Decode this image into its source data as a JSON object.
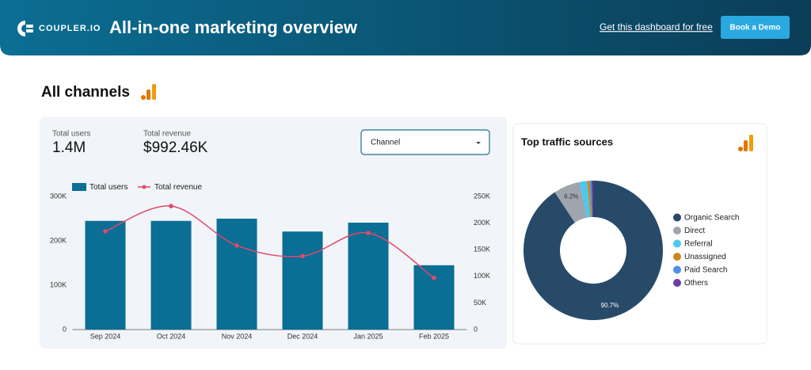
{
  "header": {
    "logo": "COUPLER.IO",
    "title": "All-in-one marketing overview",
    "link": "Get this dashboard for free",
    "button": "Book a Demo"
  },
  "section": {
    "title": "All channels"
  },
  "kpis": [
    {
      "label": "Total users",
      "value": "1.4M"
    },
    {
      "label": "Total revenue",
      "value": "$992.46K"
    }
  ],
  "filter": {
    "label": "Channel"
  },
  "chart_data": [
    {
      "type": "bar_line",
      "categories": [
        "Sep 2024",
        "Oct 2024",
        "Nov 2024",
        "Dec 2024",
        "Jan 2025",
        "Feb 2025"
      ],
      "series": [
        {
          "name": "Total users",
          "type": "bar",
          "color": "#0a6e95",
          "values": [
            245000,
            245000,
            250000,
            221000,
            241000,
            145000
          ]
        },
        {
          "name": "Total revenue",
          "type": "line",
          "axis": "y2",
          "color": "#e04a6b",
          "values": [
            184500,
            232000,
            158000,
            138000,
            181500,
            97000
          ]
        }
      ],
      "ylim": [
        0,
        300000
      ],
      "yticks": [
        0,
        {
          "value": 100000,
          "label": "100K"
        },
        {
          "value": 200000,
          "label": "200K"
        },
        {
          "value": 300000,
          "label": "300K"
        }
      ],
      "y2lim": [
        0,
        250000
      ],
      "y2ticks": [
        0,
        {
          "value": 50000,
          "label": "50K"
        },
        {
          "value": 100000,
          "label": "100K"
        },
        {
          "value": 150000,
          "label": "150K"
        },
        {
          "value": 200000,
          "label": "200K"
        },
        {
          "value": 250000,
          "label": "250K"
        }
      ],
      "legend": "top-left"
    },
    {
      "type": "donut",
      "title": "Top traffic sources",
      "categories": [
        "Organic Search",
        "Direct",
        "Referral",
        "Unassigned",
        "Paid Search",
        "Others"
      ],
      "values": [
        90.7,
        6.2,
        1.7,
        0.6,
        0.4,
        0.4
      ],
      "value_labels": [
        "90.7%",
        "6.2%",
        null,
        null,
        null,
        null
      ],
      "colors": [
        "#284a69",
        "#9ea5ac",
        "#4cc8f0",
        "#c98a1b",
        "#4f8fe6",
        "#6a3fa0"
      ],
      "legend": "right"
    }
  ]
}
